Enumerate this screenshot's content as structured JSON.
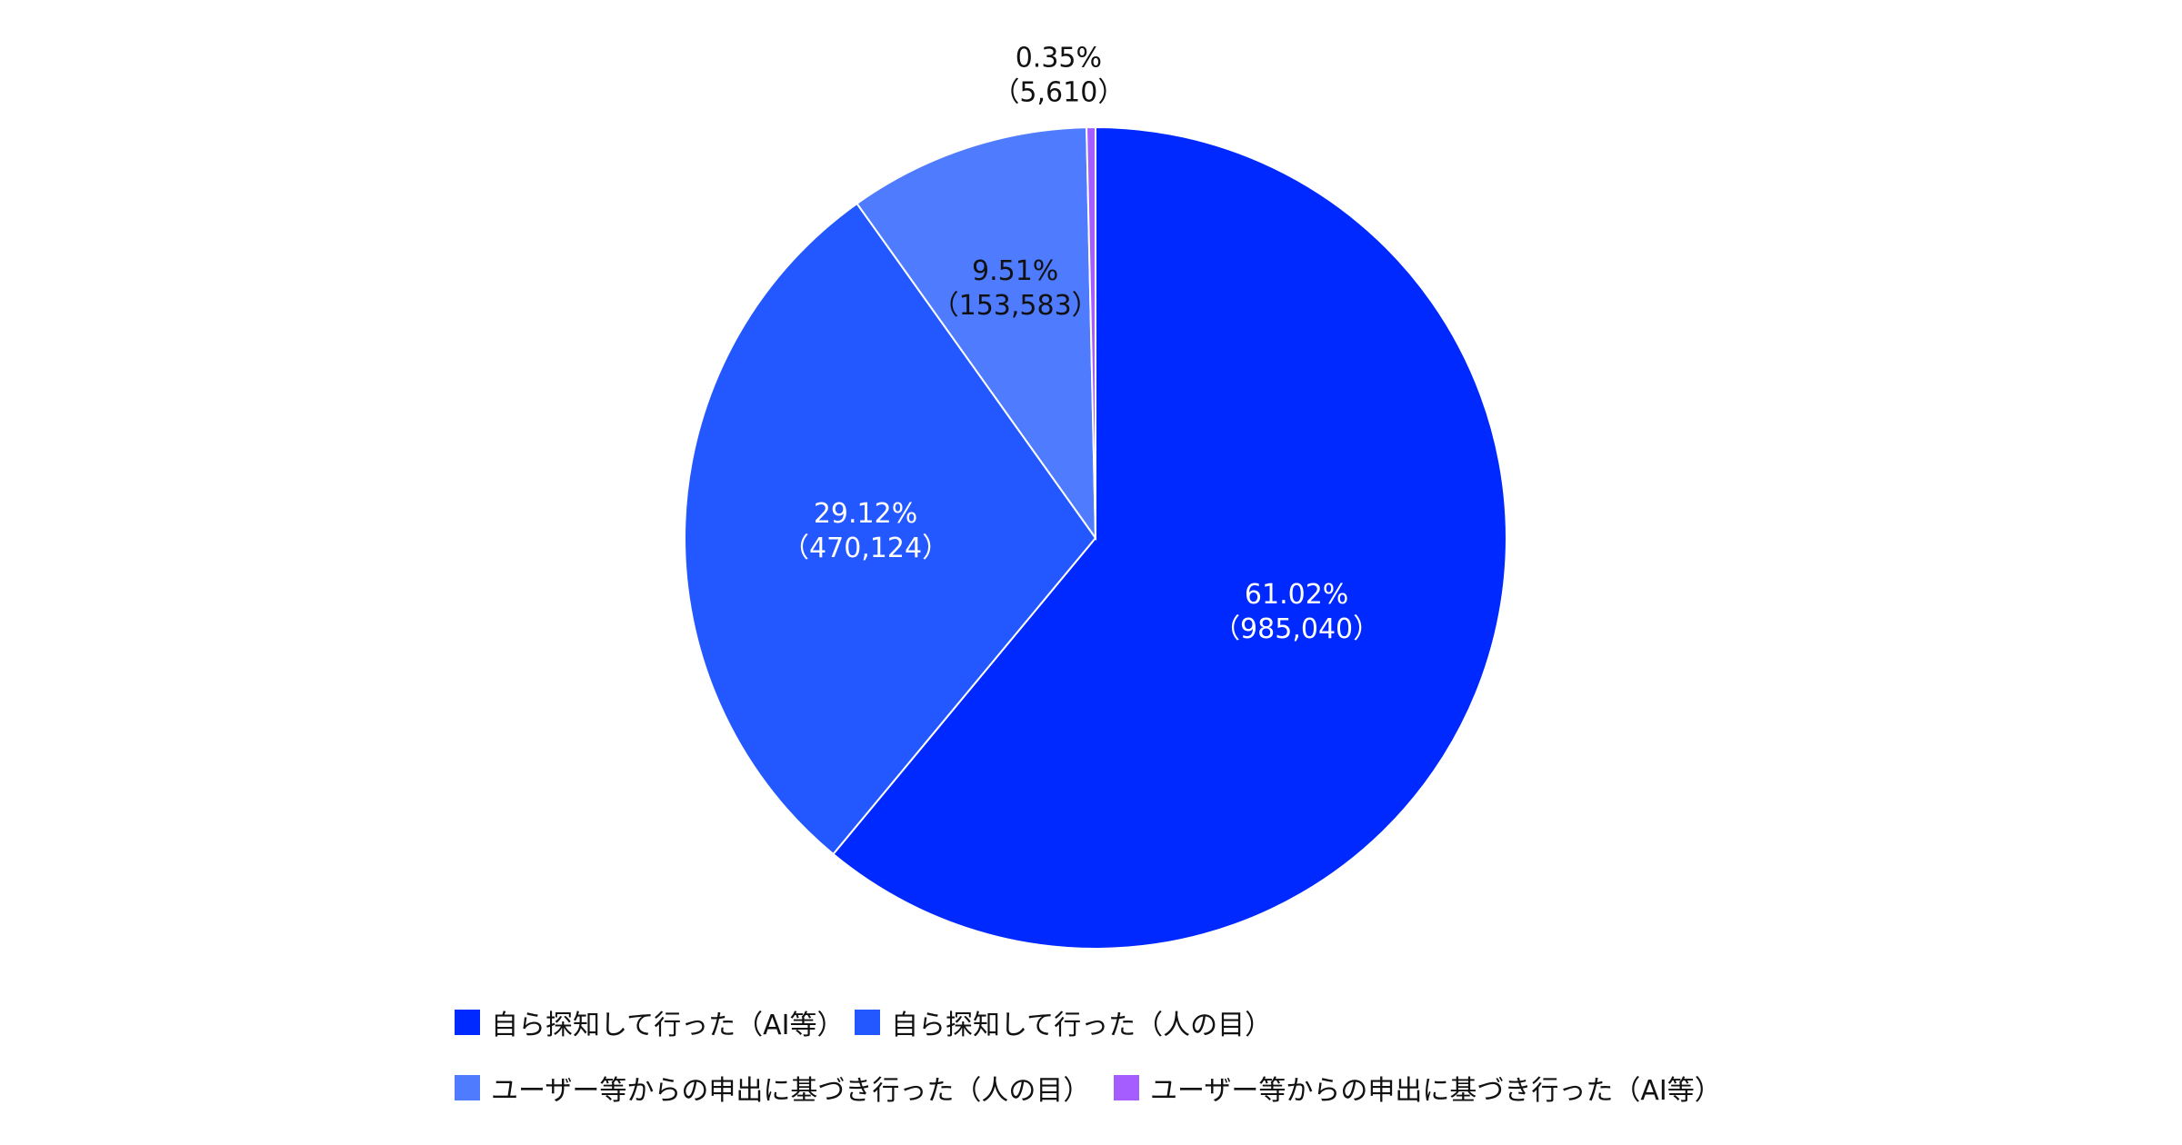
{
  "chart_data": {
    "type": "pie",
    "title": "",
    "slices": [
      {
        "name": "自ら探知して行った（AI等）",
        "percent_label": "61.02%",
        "count_label": "（985,040）",
        "percent": 61.02,
        "count": 985040,
        "color": "#0029ff"
      },
      {
        "name": "自ら探知して行った（人の目）",
        "percent_label": "29.12%",
        "count_label": "（470,124）",
        "percent": 29.12,
        "count": 470124,
        "color": "#2357ff"
      },
      {
        "name": "ユーザー等からの申出に基づき行った（人の目）",
        "percent_label": "9.51%",
        "count_label": "（153,583）",
        "percent": 9.51,
        "count": 153583,
        "color": "#4f7bff"
      },
      {
        "name": "ユーザー等からの申出に基づき行った（AI等）",
        "percent_label": "0.35%",
        "count_label": "（5,610）",
        "percent": 0.35,
        "count": 5610,
        "color": "#a55dff"
      }
    ],
    "legend_position": "bottom"
  }
}
